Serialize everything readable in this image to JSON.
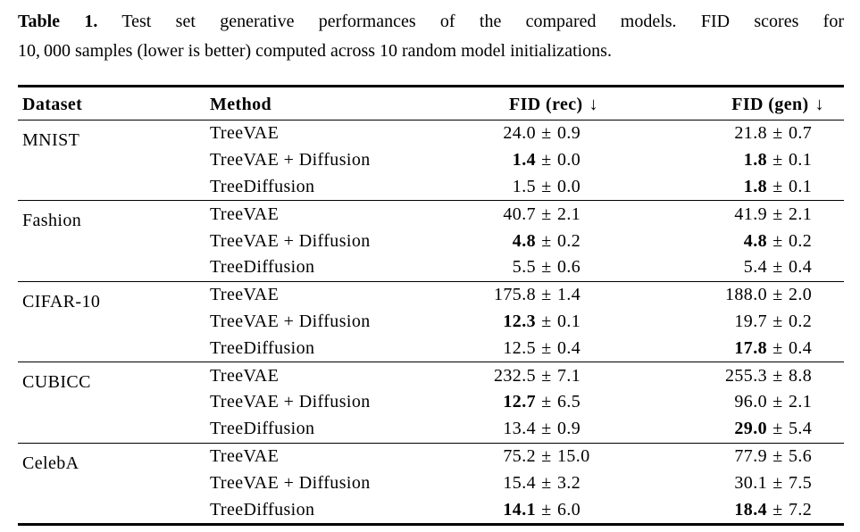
{
  "caption": {
    "label": "Table 1.",
    "line1": "Test set generative performances of the compared models. FID scores for",
    "line2": "10, 000 samples (lower is better) computed across 10 random model initializations."
  },
  "table": {
    "columns": [
      "Dataset",
      "Method",
      "FID (rec)",
      "FID (gen)"
    ],
    "arrow": "↓",
    "plus_minus": "±",
    "groups": [
      {
        "dataset": "MNIST",
        "rows": [
          {
            "method": "TreeVAE",
            "rec": {
              "value": "24.0",
              "err": "0.9",
              "bold": false
            },
            "gen": {
              "value": "21.8",
              "err": "0.7",
              "bold": false
            }
          },
          {
            "method": "TreeVAE + Diffusion",
            "rec": {
              "value": "1.4",
              "err": "0.0",
              "bold": true
            },
            "gen": {
              "value": "1.8",
              "err": "0.1",
              "bold": true
            }
          },
          {
            "method": "TreeDiffusion",
            "rec": {
              "value": "1.5",
              "err": "0.0",
              "bold": false
            },
            "gen": {
              "value": "1.8",
              "err": "0.1",
              "bold": true
            }
          }
        ]
      },
      {
        "dataset": "Fashion",
        "rows": [
          {
            "method": "TreeVAE",
            "rec": {
              "value": "40.7",
              "err": "2.1",
              "bold": false
            },
            "gen": {
              "value": "41.9",
              "err": "2.1",
              "bold": false
            }
          },
          {
            "method": "TreeVAE + Diffusion",
            "rec": {
              "value": "4.8",
              "err": "0.2",
              "bold": true
            },
            "gen": {
              "value": "4.8",
              "err": "0.2",
              "bold": true
            }
          },
          {
            "method": "TreeDiffusion",
            "rec": {
              "value": "5.5",
              "err": "0.6",
              "bold": false
            },
            "gen": {
              "value": "5.4",
              "err": "0.4",
              "bold": false
            }
          }
        ]
      },
      {
        "dataset": "CIFAR-10",
        "rows": [
          {
            "method": "TreeVAE",
            "rec": {
              "value": "175.8",
              "err": "1.4",
              "bold": false
            },
            "gen": {
              "value": "188.0",
              "err": "2.0",
              "bold": false
            }
          },
          {
            "method": "TreeVAE + Diffusion",
            "rec": {
              "value": "12.3",
              "err": "0.1",
              "bold": true
            },
            "gen": {
              "value": "19.7",
              "err": "0.2",
              "bold": false
            }
          },
          {
            "method": "TreeDiffusion",
            "rec": {
              "value": "12.5",
              "err": "0.4",
              "bold": false
            },
            "gen": {
              "value": "17.8",
              "err": "0.4",
              "bold": true
            }
          }
        ]
      },
      {
        "dataset": "CUBICC",
        "rows": [
          {
            "method": "TreeVAE",
            "rec": {
              "value": "232.5",
              "err": "7.1",
              "bold": false
            },
            "gen": {
              "value": "255.3",
              "err": "8.8",
              "bold": false
            }
          },
          {
            "method": "TreeVAE + Diffusion",
            "rec": {
              "value": "12.7",
              "err": "6.5",
              "bold": true
            },
            "gen": {
              "value": "96.0",
              "err": "2.1",
              "bold": false
            }
          },
          {
            "method": "TreeDiffusion",
            "rec": {
              "value": "13.4",
              "err": "0.9",
              "bold": false
            },
            "gen": {
              "value": "29.0",
              "err": "5.4",
              "bold": true
            }
          }
        ]
      },
      {
        "dataset": "CelebA",
        "rows": [
          {
            "method": "TreeVAE",
            "rec": {
              "value": "75.2",
              "err": "15.0",
              "bold": false
            },
            "gen": {
              "value": "77.9",
              "err": "5.6",
              "bold": false
            }
          },
          {
            "method": "TreeVAE + Diffusion",
            "rec": {
              "value": "15.4",
              "err": "3.2",
              "bold": false
            },
            "gen": {
              "value": "30.1",
              "err": "7.5",
              "bold": false
            }
          },
          {
            "method": "TreeDiffusion",
            "rec": {
              "value": "14.1",
              "err": "6.0",
              "bold": true
            },
            "gen": {
              "value": "18.4",
              "err": "7.2",
              "bold": true
            }
          }
        ]
      }
    ]
  }
}
